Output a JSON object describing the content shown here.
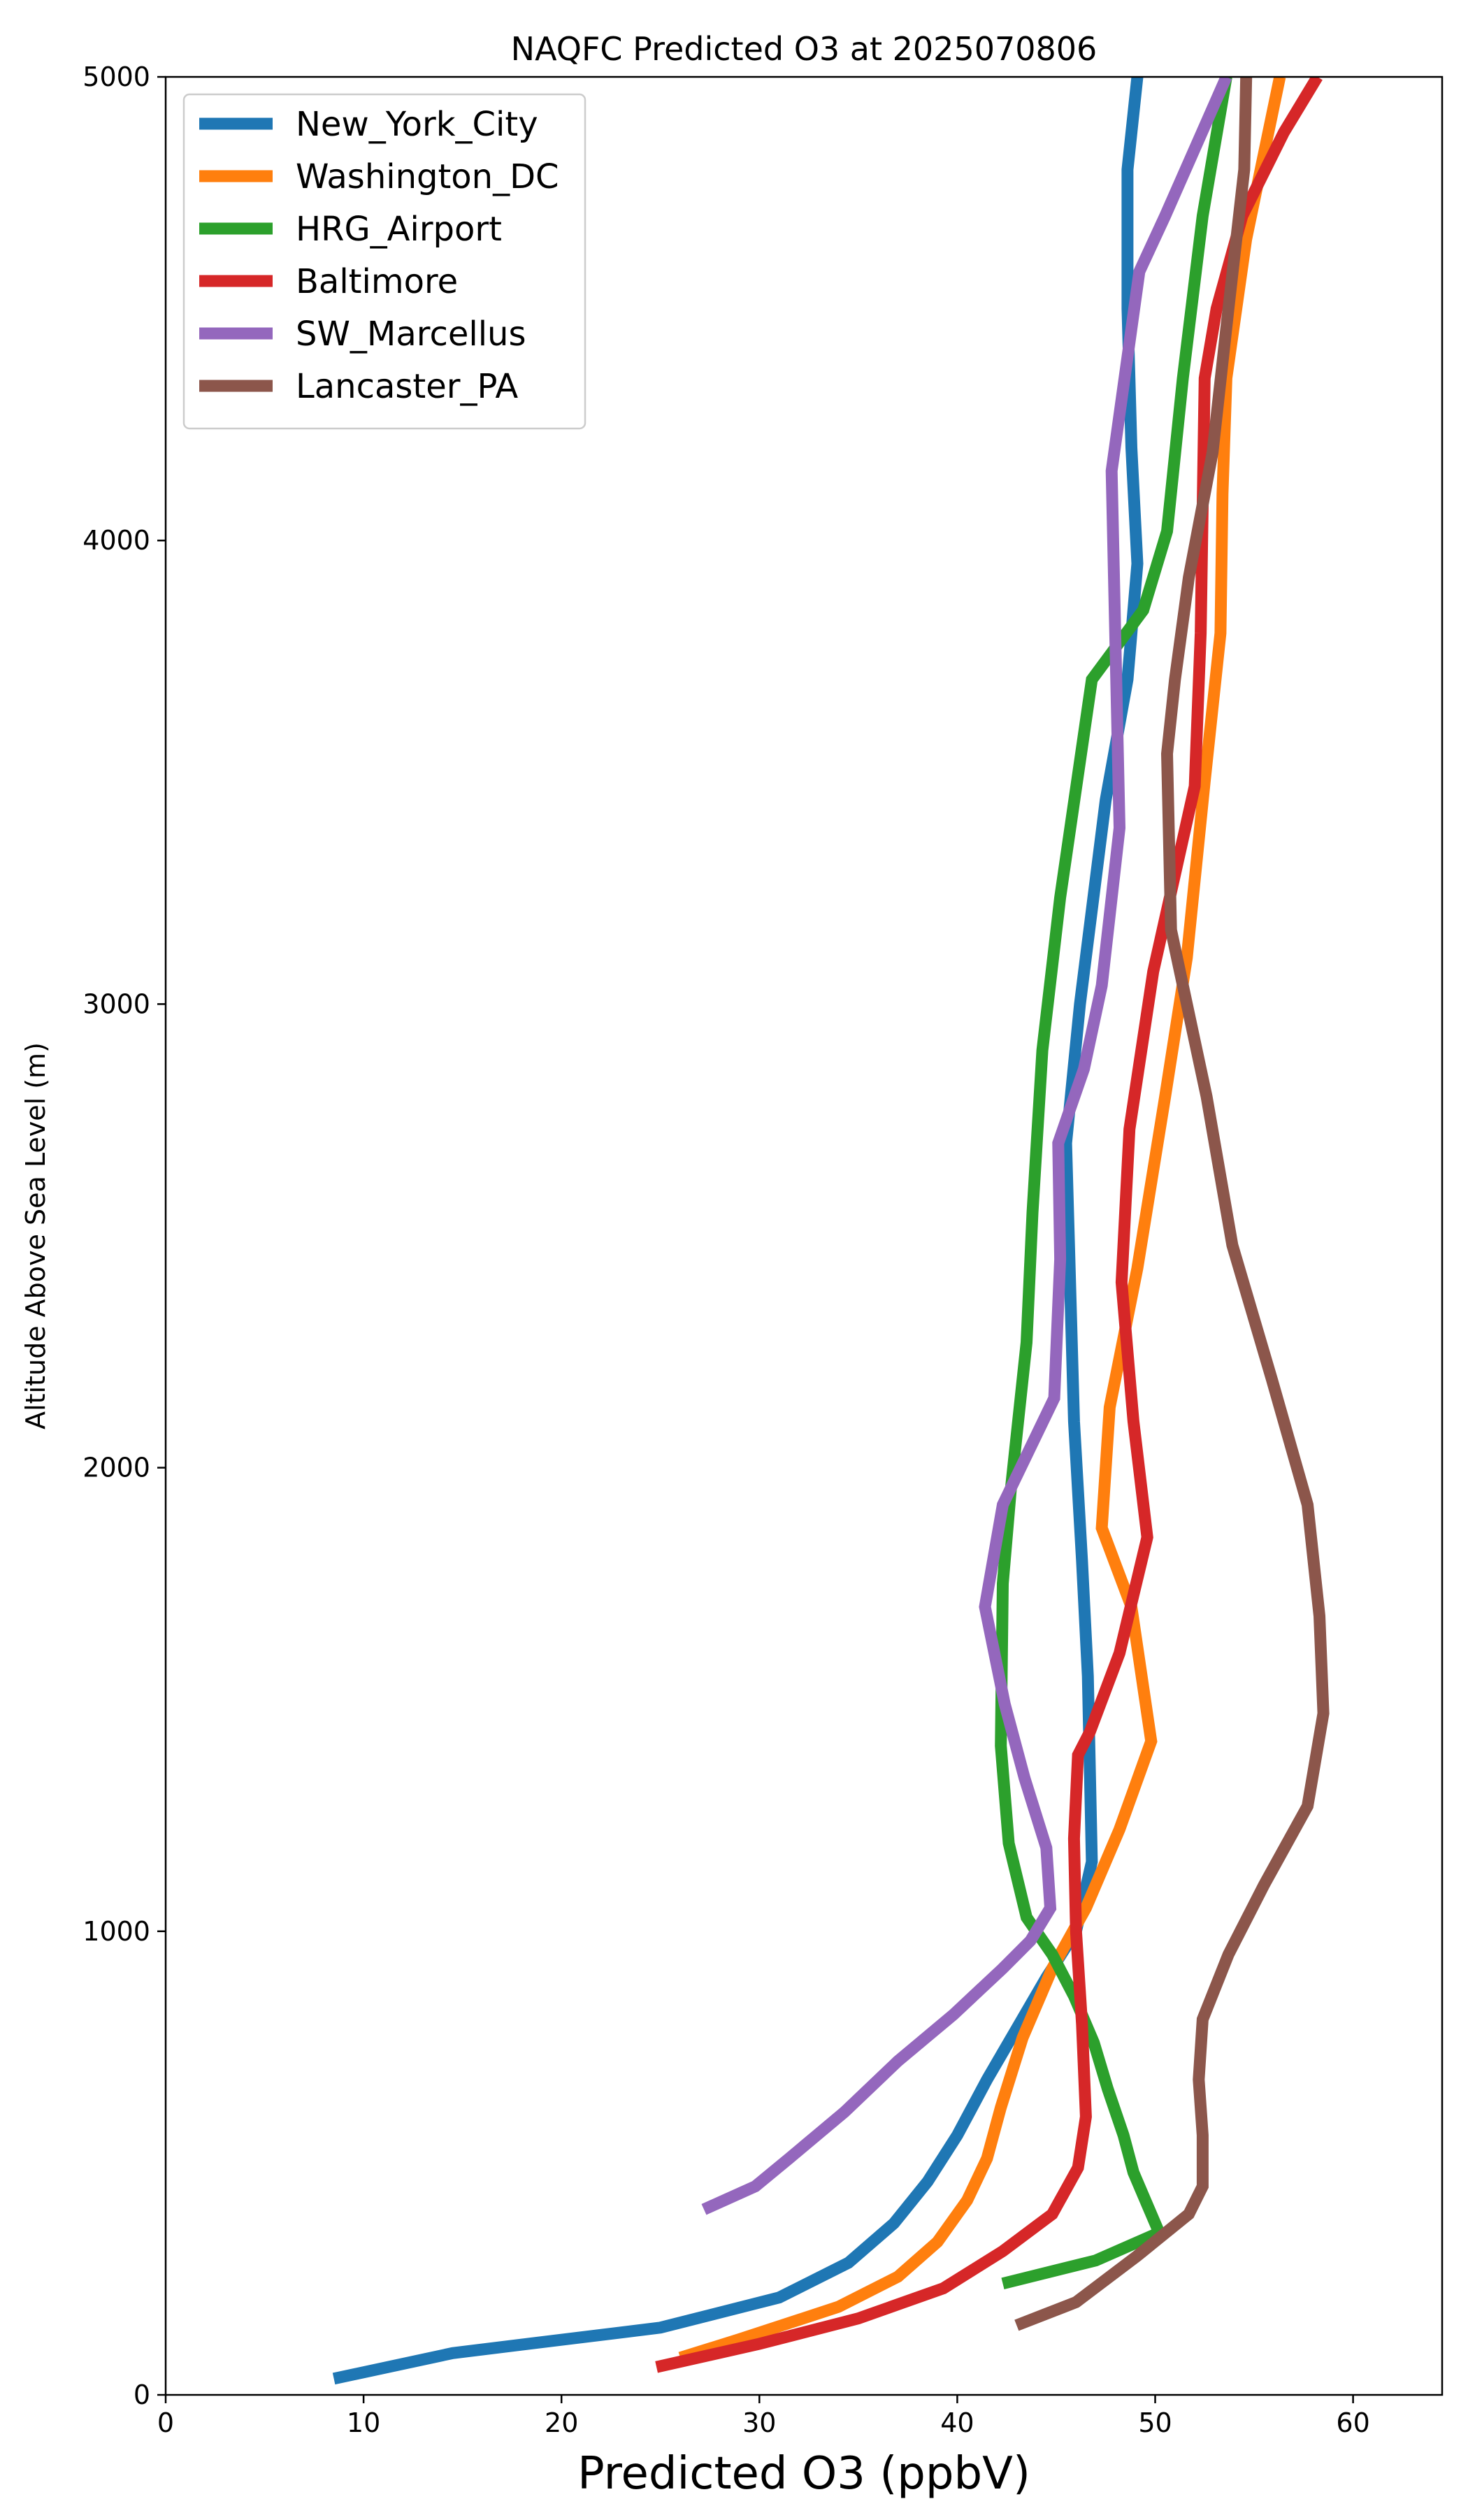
{
  "chart_data": {
    "type": "line",
    "title": "NAQFC Predicted O3 at 2025070806",
    "xlabel": "Predicted O3 (ppbV)",
    "ylabel": "Altitude Above Sea Level (m)",
    "xlim": [
      0,
      64.5
    ],
    "ylim": [
      0,
      5000
    ],
    "xticks": [
      0,
      10,
      20,
      30,
      40,
      50,
      60
    ],
    "yticks": [
      0,
      1000,
      2000,
      3000,
      4000,
      5000
    ],
    "grid": false,
    "legend_position": "top-left",
    "series": [
      {
        "name": "New_York_City",
        "color": "#1f77b4",
        "x": [
          8.5,
          14.5,
          25,
          31,
          34.5,
          36.8,
          38.5,
          40,
          41.5,
          43,
          44.5,
          46,
          46.8,
          46.6,
          46.3,
          45.9,
          45.5,
          46.2,
          47.5,
          48.6,
          49.1,
          48.8,
          48.6,
          48.6,
          49.1
        ],
        "y": [
          35,
          90,
          145,
          210,
          285,
          370,
          460,
          560,
          680,
          790,
          900,
          1000,
          1150,
          1550,
          1800,
          2100,
          2700,
          3000,
          3440,
          3700,
          3950,
          4200,
          4500,
          4800,
          5000
        ]
      },
      {
        "name": "Washington_DC",
        "color": "#ff7f0e",
        "x": [
          26,
          29,
          34,
          37,
          39,
          40.5,
          41.5,
          42.2,
          43.3,
          44.8,
          46.5,
          48.2,
          49.8,
          48.8,
          47.3,
          47.7,
          49.1,
          50.5,
          51.6,
          52.5,
          53.3,
          53.4,
          53.6,
          54.6,
          56.3
        ],
        "y": [
          80,
          120,
          190,
          255,
          330,
          420,
          510,
          620,
          770,
          920,
          1050,
          1220,
          1410,
          1700,
          1870,
          2130,
          2430,
          2800,
          3100,
          3480,
          3800,
          4100,
          4350,
          4650,
          5000
        ]
      },
      {
        "name": "HRG_Airport",
        "color": "#2ca02c",
        "x": [
          42.3,
          47,
          50.2,
          49.6,
          48.9,
          48.4,
          47.6,
          46.9,
          45.9,
          44.8,
          43.5,
          42.6,
          42.2,
          42.3,
          42.7,
          43.5,
          43.8,
          44.3,
          45.2,
          46.8,
          49.4,
          50.6,
          51.4,
          52.4,
          53.6
        ],
        "y": [
          240,
          290,
          350,
          410,
          480,
          560,
          660,
          760,
          860,
          950,
          1030,
          1190,
          1400,
          1750,
          1950,
          2270,
          2550,
          2900,
          3230,
          3700,
          3850,
          4020,
          4350,
          4700,
          5000
        ]
      },
      {
        "name": "Baltimore",
        "color": "#d62728",
        "x": [
          24.8,
          30,
          35,
          39.3,
          42.3,
          44.8,
          46.1,
          46.5,
          46.3,
          46.0,
          45.9,
          46.1,
          46.7,
          48.2,
          49.6,
          48.9,
          48.3,
          48.7,
          49.9,
          52.0,
          52.3,
          52.5,
          53.1,
          54.4,
          56.5,
          58.2
        ],
        "y": [
          60,
          110,
          165,
          230,
          310,
          390,
          490,
          600,
          800,
          1000,
          1200,
          1380,
          1430,
          1600,
          1850,
          2100,
          2400,
          2730,
          3070,
          3470,
          3800,
          4350,
          4500,
          4700,
          4880,
          5000
        ]
      },
      {
        "name": "SW_Marcellus",
        "color": "#9467bd",
        "x": [
          27.2,
          29.8,
          31.5,
          34.3,
          37,
          39.8,
          42.3,
          43.7,
          44.7,
          44.5,
          43.4,
          42.4,
          41.4,
          42.3,
          44.9,
          45.2,
          45.1,
          46.4,
          47.3,
          48.2,
          47.8,
          49.2,
          50.5,
          53.6
        ],
        "y": [
          400,
          450,
          510,
          610,
          720,
          820,
          920,
          980,
          1050,
          1180,
          1330,
          1490,
          1700,
          1920,
          2150,
          2450,
          2700,
          2860,
          3040,
          3380,
          4150,
          4580,
          4700,
          5000
        ]
      },
      {
        "name": "Lancaster_PA",
        "color": "#8c564b",
        "x": [
          43,
          46,
          49.1,
          51.7,
          52.4,
          52.4,
          52.2,
          52.4,
          53.7,
          55.5,
          57.7,
          58.5,
          58.3,
          57.7,
          55.9,
          53.9,
          52.6,
          50.8,
          50.6,
          51.0,
          51.7,
          52.9,
          53.7,
          54.5,
          54.6
        ],
        "y": [
          150,
          200,
          300,
          390,
          450,
          560,
          680,
          810,
          950,
          1100,
          1270,
          1470,
          1680,
          1920,
          2190,
          2480,
          2800,
          3160,
          3540,
          3700,
          3920,
          4190,
          4500,
          4800,
          5000
        ]
      }
    ]
  }
}
